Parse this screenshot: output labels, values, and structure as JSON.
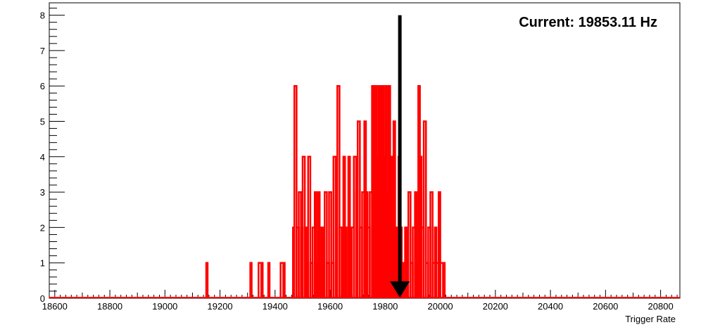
{
  "chart_data": {
    "type": "histogram",
    "xlabel": "Trigger Rate",
    "ylabel": "",
    "title": "",
    "xlim": [
      18580,
      20870
    ],
    "ylim": [
      0,
      8.35
    ],
    "x_ticks": [
      18600,
      18800,
      19000,
      19200,
      19400,
      19600,
      19800,
      20000,
      20200,
      20400,
      20600,
      20800
    ],
    "y_ticks": [
      0,
      1,
      2,
      3,
      4,
      5,
      6,
      7,
      8
    ],
    "annotation": "Current: 19853.11 Hz",
    "marker": {
      "x": 19853.11,
      "y_top": 8,
      "color": "#000000",
      "style": "arrow-down"
    },
    "series": [
      {
        "color": "#ff0000",
        "bins": [
          [
            19150,
            1
          ],
          [
            19310,
            1
          ],
          [
            19340,
            1
          ],
          [
            19350,
            1
          ],
          [
            19375,
            1
          ],
          [
            19420,
            1
          ],
          [
            19430,
            1
          ],
          [
            19465,
            2
          ],
          [
            19470,
            6
          ],
          [
            19478,
            2
          ],
          [
            19486,
            3
          ],
          [
            19494,
            2
          ],
          [
            19500,
            4
          ],
          [
            19508,
            2
          ],
          [
            19514,
            1
          ],
          [
            19520,
            4
          ],
          [
            19528,
            1
          ],
          [
            19536,
            2
          ],
          [
            19544,
            3
          ],
          [
            19550,
            1
          ],
          [
            19556,
            3
          ],
          [
            19562,
            1
          ],
          [
            19568,
            2
          ],
          [
            19574,
            1
          ],
          [
            19580,
            3
          ],
          [
            19588,
            1
          ],
          [
            19596,
            3
          ],
          [
            19604,
            1
          ],
          [
            19612,
            4
          ],
          [
            19620,
            1
          ],
          [
            19626,
            6
          ],
          [
            19634,
            2
          ],
          [
            19642,
            2
          ],
          [
            19648,
            4
          ],
          [
            19654,
            2
          ],
          [
            19660,
            0
          ],
          [
            19666,
            4
          ],
          [
            19672,
            0
          ],
          [
            19678,
            2
          ],
          [
            19686,
            4
          ],
          [
            19694,
            3
          ],
          [
            19700,
            5
          ],
          [
            19708,
            2
          ],
          [
            19716,
            3
          ],
          [
            19724,
            5
          ],
          [
            19730,
            3
          ],
          [
            19736,
            2
          ],
          [
            19744,
            3
          ],
          [
            19752,
            6
          ],
          [
            19758,
            4
          ],
          [
            19764,
            6
          ],
          [
            19770,
            4
          ],
          [
            19776,
            6
          ],
          [
            19782,
            4
          ],
          [
            19788,
            6
          ],
          [
            19794,
            4
          ],
          [
            19800,
            6
          ],
          [
            19806,
            3
          ],
          [
            19812,
            6
          ],
          [
            19818,
            4
          ],
          [
            19824,
            2
          ],
          [
            19830,
            5
          ],
          [
            19836,
            2
          ],
          [
            19842,
            1
          ],
          [
            19848,
            4
          ],
          [
            19854,
            2
          ],
          [
            19860,
            1
          ],
          [
            19866,
            0
          ],
          [
            19872,
            2
          ],
          [
            19878,
            0
          ],
          [
            19884,
            3
          ],
          [
            19892,
            1
          ],
          [
            19900,
            2
          ],
          [
            19908,
            3
          ],
          [
            19914,
            1
          ],
          [
            19920,
            6
          ],
          [
            19926,
            4
          ],
          [
            19932,
            2
          ],
          [
            19940,
            5
          ],
          [
            19948,
            1
          ],
          [
            19956,
            2
          ],
          [
            19964,
            3
          ],
          [
            19972,
            1
          ],
          [
            19980,
            2
          ],
          [
            19986,
            1
          ],
          [
            19994,
            3
          ],
          [
            20000,
            1
          ],
          [
            20010,
            1
          ],
          [
            20016,
            0
          ]
        ]
      }
    ]
  }
}
